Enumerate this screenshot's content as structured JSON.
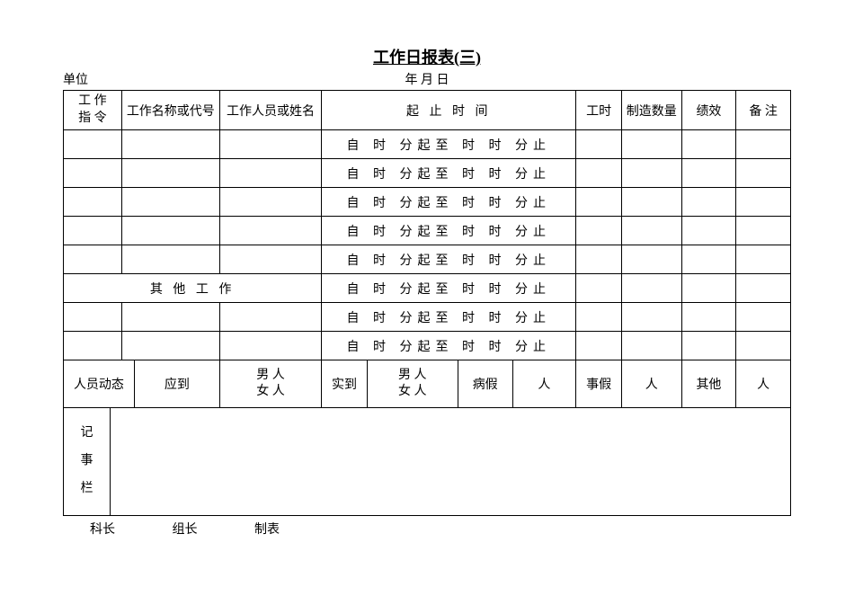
{
  "title": "工作日报表(三)",
  "header": {
    "unit_label": "单位",
    "date_label": "年  月   日"
  },
  "columns": {
    "work_order": "工 作\n指 令",
    "work_name": "工作名称或代号",
    "worker": "工作人员或姓名",
    "time_range": "起  止  时  间",
    "hours": "工时",
    "qty": "制造数量",
    "perf": "绩效",
    "remark": "备 注"
  },
  "column_widths": {
    "work_order": 64,
    "work_name": 108,
    "worker": 112,
    "time_range": 280,
    "hours": 50,
    "qty": 66,
    "perf": 60,
    "remark": 60
  },
  "time_row_text": "自  时  分起至  时  时  分止",
  "other_work_label": "其 他 工 作",
  "personnel": {
    "label": "人员动态",
    "expected": "应到",
    "male_female": "男   人\n女   人",
    "actual": "实到",
    "sick": "病假",
    "person": "人",
    "personal": "事假",
    "other": "其他"
  },
  "notes_label": "记\n事\n栏",
  "footer": {
    "chief": "科长",
    "leader": "组长",
    "preparer": "制表"
  },
  "row_count_main": 5,
  "row_count_other": 2
}
